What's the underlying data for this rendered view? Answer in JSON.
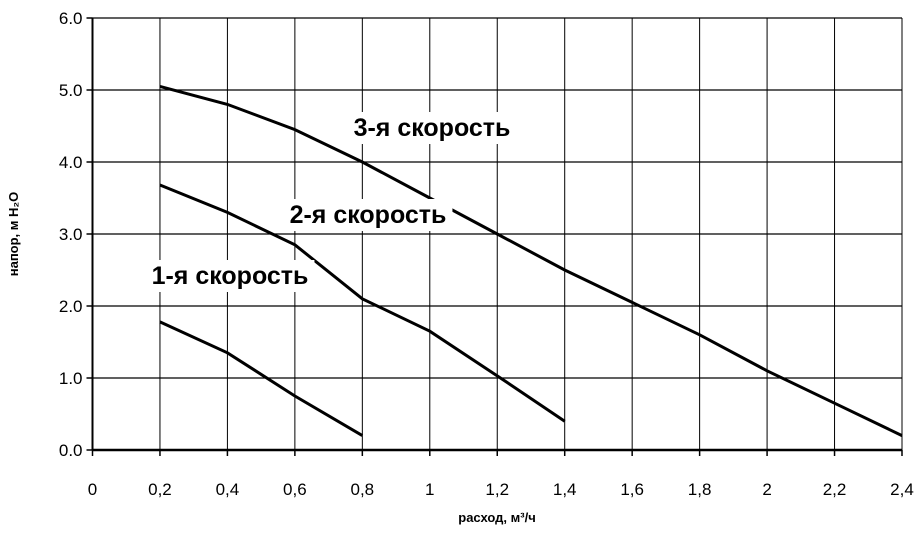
{
  "chart_data": {
    "type": "line",
    "x_label": "расход, м³/ч",
    "y_label": "напор, м H₂O",
    "xlim": [
      0,
      2.4
    ],
    "xticks": [
      0,
      {
        "value": 0.2,
        "label": "0,2"
      },
      {
        "value": 0.4,
        "label": "0,4"
      },
      {
        "value": 0.6,
        "label": "0,6"
      },
      {
        "value": 0.8,
        "label": "0,8"
      },
      1,
      {
        "value": 1.2,
        "label": "1,2"
      },
      {
        "value": 1.4,
        "label": "1,4"
      },
      {
        "value": 1.6,
        "label": "1,6"
      },
      {
        "value": 1.8,
        "label": "1,8"
      },
      2,
      {
        "value": 2.2,
        "label": "2,2"
      },
      {
        "value": 2.4,
        "label": "2,4"
      }
    ],
    "ylim": [
      0,
      6
    ],
    "yticks": [
      {
        "value": 0,
        "label": "0.0"
      },
      {
        "value": 1,
        "label": "1.0"
      },
      {
        "value": 2,
        "label": "2.0"
      },
      {
        "value": 3,
        "label": "3.0"
      },
      {
        "value": 4,
        "label": "4.0"
      },
      {
        "value": 5,
        "label": "5.0"
      },
      {
        "value": 6,
        "label": "6.0"
      }
    ],
    "grid": true,
    "series": [
      {
        "name": "1-я скорость",
        "color": "#000000",
        "x": [
          0.2,
          0.4,
          0.6,
          0.8
        ],
        "values": [
          1.78,
          1.35,
          0.75,
          0.2
        ]
      },
      {
        "name": "2-я скорость",
        "color": "#000000",
        "x": [
          0.2,
          0.4,
          0.6,
          0.8,
          1.0,
          1.2,
          1.4
        ],
        "values": [
          3.68,
          3.3,
          2.85,
          2.1,
          1.65,
          1.03,
          0.4
        ]
      },
      {
        "name": "3-я скорость",
        "color": "#000000",
        "x": [
          0.2,
          0.4,
          0.6,
          0.8,
          1.0,
          1.2,
          1.4,
          1.6,
          1.8,
          2.0,
          2.2,
          2.4
        ],
        "values": [
          5.05,
          4.8,
          4.45,
          4.0,
          3.5,
          3.0,
          2.5,
          2.05,
          1.6,
          1.1,
          0.65,
          0.2
        ]
      }
    ]
  }
}
